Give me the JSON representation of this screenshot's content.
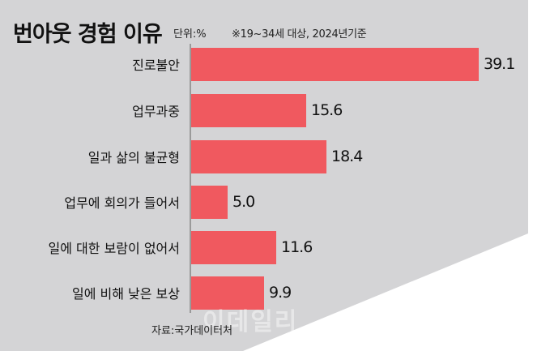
{
  "header": {
    "title": "번아웃 경험 이유",
    "unit": "단위:%",
    "note": "※19~34세 대상, 2024년기준"
  },
  "footer": {
    "source": "자료:국가데이터처",
    "watermark": "이데일리"
  },
  "colors": {
    "bar": "#f0595f",
    "background": "#d4d4d6",
    "text": "#111111"
  },
  "bars": [
    {
      "label": "진로불안",
      "value": "39.1"
    },
    {
      "label": "업무과중",
      "value": "15.6"
    },
    {
      "label": "일과 삶의 불균형",
      "value": "18.4"
    },
    {
      "label": "업무에 회의가 들어서",
      "value": "5.0"
    },
    {
      "label": "일에 대한 보람이 없어서",
      "value": "11.6"
    },
    {
      "label": "일에 비해 낮은 보상",
      "value": "9.9"
    }
  ],
  "chart_data": {
    "type": "bar",
    "orientation": "horizontal",
    "title": "번아웃 경험 이유",
    "subtitle": "단위:% ※19~34세 대상, 2024년기준",
    "categories": [
      "진로불안",
      "업무과중",
      "일과 삶의 불균형",
      "업무에 회의가 들어서",
      "일에 대한 보람이 없어서",
      "일에 비해 낮은 보상"
    ],
    "values": [
      39.1,
      15.6,
      18.4,
      5.0,
      11.6,
      9.9
    ],
    "xlabel": "",
    "ylabel": "",
    "unit": "%",
    "source": "자료:국가데이터처",
    "grid": false,
    "legend": null
  }
}
